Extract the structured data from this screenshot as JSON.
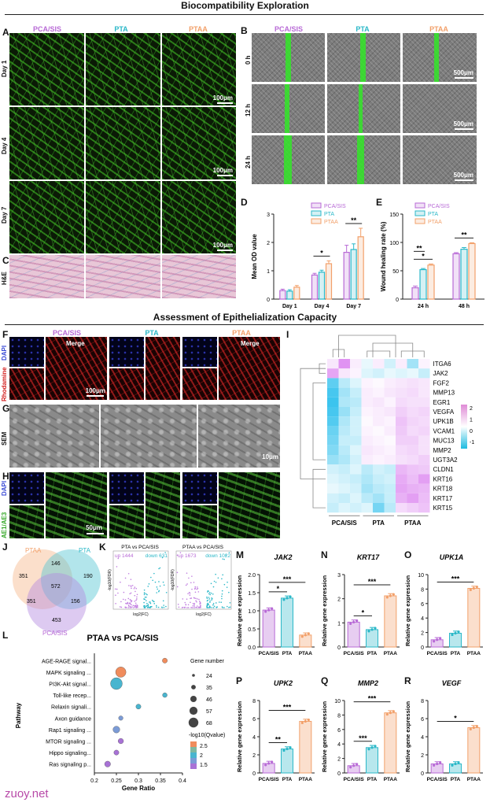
{
  "headings": {
    "biocompat": "Biocompatibility Exploration",
    "epithel": "Assessment of Epithelialization Capacity"
  },
  "groups": [
    "PCA/SIS",
    "PTA",
    "PTAA"
  ],
  "colors": {
    "pca": "#b86ad6",
    "pta": "#2bb8c8",
    "ptaa": "#f2a06a"
  },
  "panel_letters": [
    "A",
    "B",
    "C",
    "D",
    "E",
    "F",
    "G",
    "H",
    "I",
    "J",
    "K",
    "L",
    "M",
    "N",
    "O",
    "P",
    "Q",
    "R"
  ],
  "panel_a": {
    "rows": [
      "Day 1",
      "Day 4",
      "Day 7"
    ],
    "scale": "100μm"
  },
  "panel_b": {
    "rows": [
      "0 h",
      "12 h",
      "24 h"
    ],
    "scale": "500μm"
  },
  "panel_c": {
    "row": "H&E"
  },
  "panel_f": {
    "rows": [
      "DAPI",
      "Rhodamine"
    ],
    "merge": "Merge",
    "scale": "100μm"
  },
  "panel_g": {
    "row": "SEM",
    "scale": "10μm"
  },
  "panel_h": {
    "rows": [
      "DAPI",
      "AE1/AE3"
    ],
    "merge": "Merge",
    "scale": "50μm"
  },
  "panel_j": {
    "sets": [
      "PTAA",
      "PTA",
      "PCA/SIS"
    ],
    "regions": {
      "ptaa_only": "351",
      "pta_only": "190",
      "pca_only": "453",
      "ptaa_pta": "146",
      "ptaa_pca": "351",
      "pta_pca": "156",
      "all": "572"
    }
  },
  "panel_k": [
    {
      "title": "PTA vs PCA/SIS",
      "up": "up 1444",
      "down": "down 631",
      "xlabel": "log2(FC)",
      "ylabel": "-log10(FDR)"
    },
    {
      "title": "PTAA vs PCA/SIS",
      "up": "up 1673",
      "down": "down 1022",
      "xlabel": "log2(FC)",
      "ylabel": "-log10(FDR)"
    }
  ],
  "chart_data": [
    {
      "panel": "D",
      "type": "bar",
      "categories": [
        "Day 1",
        "Day 4",
        "Day 7"
      ],
      "series": [
        {
          "name": "PCA/SIS",
          "values": [
            0.3,
            0.85,
            1.65
          ],
          "err": [
            0.05,
            0.06,
            0.25
          ]
        },
        {
          "name": "PTA",
          "values": [
            0.28,
            0.95,
            1.75
          ],
          "err": [
            0.05,
            0.07,
            0.2
          ]
        },
        {
          "name": "PTAA",
          "values": [
            0.42,
            1.25,
            2.2
          ],
          "err": [
            0.06,
            0.1,
            0.3
          ]
        }
      ],
      "ylabel": "Mean OD value",
      "ylim": [
        0,
        3
      ],
      "yticks": [
        "0",
        "1",
        "2",
        "3"
      ],
      "sig": [
        {
          "category": 1,
          "label": "*"
        },
        {
          "category": 2,
          "label": "**"
        }
      ]
    },
    {
      "panel": "E",
      "type": "bar",
      "categories": [
        "24 h",
        "48 h"
      ],
      "series": [
        {
          "name": "PCA/SIS",
          "values": [
            20,
            80
          ],
          "err": [
            3,
            2
          ]
        },
        {
          "name": "PTA",
          "values": [
            52,
            88
          ],
          "err": [
            2,
            3
          ]
        },
        {
          "name": "PTAA",
          "values": [
            60,
            98
          ],
          "err": [
            2,
            1.5
          ]
        }
      ],
      "ylabel": "Wound healing rate (%)",
      "ylim": [
        0,
        150
      ],
      "yticks": [
        "0",
        "50",
        "100",
        "150"
      ],
      "sig": [
        {
          "category": 0,
          "label": "*"
        },
        {
          "category": 0,
          "label": "**"
        },
        {
          "category": 1,
          "label": "**"
        }
      ]
    },
    {
      "panel": "I",
      "type": "heatmap",
      "genes": [
        "ITGA6",
        "JAK2",
        "FGF2",
        "MMP13",
        "EGR1",
        "VEGFA",
        "UPK1B",
        "VCAM1",
        "MUC13",
        "MMP2",
        "UGT3A2",
        "CLDN1",
        "KRT16",
        "KRT18",
        "KRT17",
        "KRT15"
      ],
      "columns": [
        "PCA/SIS",
        "PCA/SIS",
        "PCA/SIS",
        "PTA",
        "PTA",
        "PTA",
        "PTAA",
        "PTAA",
        "PTAA"
      ],
      "col_groups": [
        "PCA/SIS",
        "PTA",
        "PTAA"
      ],
      "legend_ticks": [
        "2",
        "1",
        "0",
        "-1"
      ],
      "values": [
        [
          0.4,
          1.8,
          0.3,
          -0.2,
          0.3,
          -0.4,
          0.3,
          -0.8,
          0.2
        ],
        [
          1.5,
          0.4,
          0.2,
          -0.3,
          -0.4,
          -0.2,
          -0.3,
          -0.2,
          -0.5
        ],
        [
          -1.4,
          -0.6,
          -0.3,
          0.2,
          0.1,
          0.3,
          0.4,
          0.5,
          0.4
        ],
        [
          -1.6,
          -0.8,
          -0.5,
          0.3,
          0.2,
          0.4,
          0.5,
          0.6,
          0.4
        ],
        [
          -1.7,
          -0.7,
          -0.6,
          0.3,
          0.4,
          0.2,
          0.6,
          0.5,
          0.5
        ],
        [
          -1.6,
          -0.9,
          -0.5,
          0.2,
          0.3,
          0.4,
          0.8,
          0.6,
          0.7
        ],
        [
          -1.5,
          -0.7,
          -0.4,
          0.1,
          0.3,
          0.2,
          1.0,
          0.7,
          0.6
        ],
        [
          -1.3,
          -0.6,
          -0.4,
          0.2,
          0.1,
          0.3,
          0.9,
          0.6,
          0.7
        ],
        [
          -1.2,
          -0.5,
          -0.5,
          0.3,
          0.2,
          0.1,
          0.8,
          0.8,
          0.5
        ],
        [
          -1.1,
          -0.6,
          -0.3,
          0.4,
          0.3,
          0.2,
          0.6,
          0.7,
          0.5
        ],
        [
          -0.9,
          -0.7,
          -0.4,
          0.3,
          0.2,
          0.3,
          0.5,
          0.6,
          0.8
        ],
        [
          -0.4,
          -0.5,
          -0.3,
          -0.6,
          -0.4,
          -0.5,
          1.2,
          1.0,
          0.9
        ],
        [
          -0.3,
          -0.4,
          -0.5,
          -0.7,
          -0.5,
          -0.4,
          1.4,
          1.1,
          1.6
        ],
        [
          -0.2,
          -0.3,
          -0.4,
          -0.8,
          -0.6,
          -0.5,
          1.5,
          1.3,
          1.2
        ],
        [
          -0.4,
          -0.5,
          -0.3,
          -0.6,
          -0.8,
          -0.5,
          1.3,
          1.6,
          1.1
        ],
        [
          -0.5,
          -0.3,
          -0.4,
          -0.3,
          -1.2,
          -0.6,
          0.6,
          0.8,
          1.0
        ]
      ]
    },
    {
      "panel": "L",
      "type": "scatter",
      "title": "PTAA vs PCA/SIS",
      "pathways": [
        "AGE-RAGE signal...",
        "MAPK signaling ...",
        "PI3K-Akt signal...",
        "Toll-like recep...",
        "Relaxin signali...",
        "Axon guidance",
        "Rap1 signaling ...",
        "MTOR signaling ...",
        "Hippo signaling...",
        "Ras signaling p..."
      ],
      "gene_ratio": [
        0.36,
        0.26,
        0.25,
        0.36,
        0.3,
        0.26,
        0.25,
        0.26,
        0.25,
        0.23
      ],
      "gene_number": [
        30,
        60,
        68,
        28,
        30,
        27,
        40,
        32,
        30,
        35
      ],
      "qvalue": [
        2.8,
        2.7,
        2.2,
        2.0,
        2.0,
        1.8,
        1.6,
        1.5,
        1.4,
        1.2
      ],
      "xlabel": "Gene Ratio",
      "ylabel": "Pathway",
      "xlim": [
        0.2,
        0.4
      ],
      "xticks": [
        "0.2",
        "0.25",
        "0.3",
        "0.35",
        "0.4"
      ],
      "size_legend_title": "Gene number",
      "size_legend": [
        "24",
        "35",
        "46",
        "57",
        "68"
      ],
      "color_legend_title": "-log10(Qvalue)",
      "color_legend": [
        "2.5",
        "2",
        "1.5"
      ]
    },
    {
      "panel": "M",
      "type": "bar",
      "title": "JAK2",
      "categories": [
        "PCA/SIS",
        "PTA",
        "PTAA"
      ],
      "values": [
        1.02,
        1.35,
        0.33
      ],
      "ylabel": "Relative gene expression",
      "ylim": [
        0,
        2.0
      ],
      "yticks": [
        "0.0",
        "0.5",
        "1.0",
        "1.5",
        "2.0"
      ],
      "sig": [
        {
          "from": 0,
          "to": 1,
          "label": "*"
        },
        {
          "from": 0,
          "to": 2,
          "label": "***"
        }
      ]
    },
    {
      "panel": "N",
      "type": "bar",
      "title": "KRT17",
      "categories": [
        "PCA/SIS",
        "PTA",
        "PTAA"
      ],
      "values": [
        1.03,
        0.72,
        2.12
      ],
      "ylabel": "Relative gene expression",
      "ylim": [
        0,
        3
      ],
      "yticks": [
        "0",
        "1",
        "2",
        "3"
      ],
      "sig": [
        {
          "from": 0,
          "to": 1,
          "label": "*"
        },
        {
          "from": 0,
          "to": 2,
          "label": "***"
        }
      ]
    },
    {
      "panel": "O",
      "type": "bar",
      "title": "UPK1A",
      "categories": [
        "PCA/SIS",
        "PTA",
        "PTAA"
      ],
      "values": [
        1.0,
        1.9,
        8.1
      ],
      "ylabel": "Relative gene expression",
      "ylim": [
        0,
        10
      ],
      "yticks": [
        "0",
        "2",
        "4",
        "6",
        "8",
        "10"
      ],
      "sig": [
        {
          "from": 0,
          "to": 2,
          "label": "***"
        }
      ]
    },
    {
      "panel": "P",
      "type": "bar",
      "title": "UPK2",
      "categories": [
        "PCA/SIS",
        "PTA",
        "PTAA"
      ],
      "values": [
        1.05,
        2.65,
        5.7
      ],
      "ylabel": "Relative gene expression",
      "ylim": [
        0,
        8
      ],
      "yticks": [
        "0",
        "2",
        "4",
        "6",
        "8"
      ],
      "sig": [
        {
          "from": 0,
          "to": 1,
          "label": "**"
        },
        {
          "from": 0,
          "to": 2,
          "label": "***"
        }
      ]
    },
    {
      "panel": "Q",
      "type": "bar",
      "title": "MMP2",
      "categories": [
        "PCA/SIS",
        "PTA",
        "PTAA"
      ],
      "values": [
        1.0,
        3.5,
        8.3
      ],
      "ylabel": "Relative gene expression",
      "ylim": [
        0,
        10
      ],
      "yticks": [
        "0",
        "2",
        "4",
        "6",
        "8",
        "10"
      ],
      "sig": [
        {
          "from": 0,
          "to": 1,
          "label": "***"
        },
        {
          "from": 0,
          "to": 2,
          "label": "***"
        }
      ]
    },
    {
      "panel": "R",
      "type": "bar",
      "title": "VEGF",
      "categories": [
        "PCA/SIS",
        "PTA",
        "PTAA"
      ],
      "values": [
        1.0,
        1.0,
        5.0
      ],
      "ylabel": "Relative gene expression",
      "ylim": [
        0,
        8
      ],
      "yticks": [
        "0",
        "2",
        "4",
        "6",
        "8"
      ],
      "sig": [
        {
          "from": 0,
          "to": 2,
          "label": "*"
        }
      ]
    }
  ],
  "watermark": "zuoy.net"
}
